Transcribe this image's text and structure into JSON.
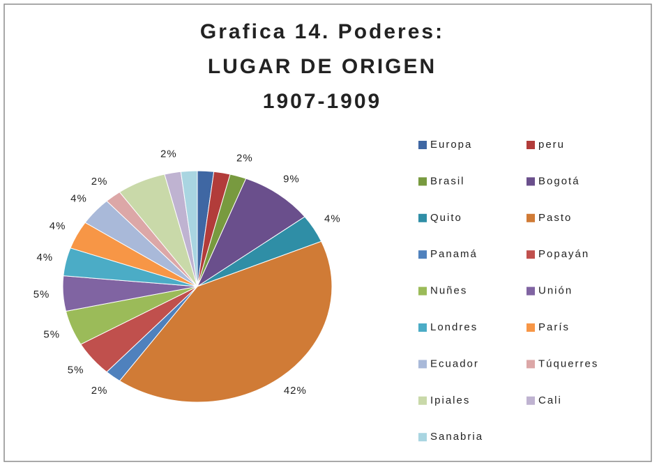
{
  "chart_data": {
    "type": "pie",
    "title": [
      "Grafica 14. Poderes:",
      "LUGAR DE ORIGEN",
      "1907-1909"
    ],
    "categories": [
      "Europa",
      "peru",
      "Brasil",
      "Bogotá",
      "Quito",
      "Pasto",
      "Panamá",
      "Popayán",
      "Nuñes",
      "Unión",
      "Londres",
      "París",
      "Ecuador",
      "Túquerres",
      "Ipiales",
      "Cali",
      "Sanabria"
    ],
    "values": [
      2,
      2,
      2,
      9,
      4,
      42,
      2,
      5,
      5,
      5,
      4,
      4,
      4,
      2,
      6,
      2,
      2
    ],
    "value_labels": [
      null,
      null,
      "2%",
      "9%",
      "4%",
      "42%",
      "2%",
      "5%",
      "5%",
      "5%",
      "4%",
      "4%",
      "4%",
      "2%",
      null,
      "2%",
      null
    ],
    "colors": [
      "#3f67a3",
      "#b23c3a",
      "#789a3f",
      "#6a4f8c",
      "#2f8ea6",
      "#d07b36",
      "#4f81bd",
      "#c0504d",
      "#9bbb59",
      "#8064a2",
      "#4bacc6",
      "#f79646",
      "#a9b9d9",
      "#dca7a7",
      "#c9d9a9",
      "#bfb3d1",
      "#a9d5e1"
    ],
    "legend": "right"
  }
}
